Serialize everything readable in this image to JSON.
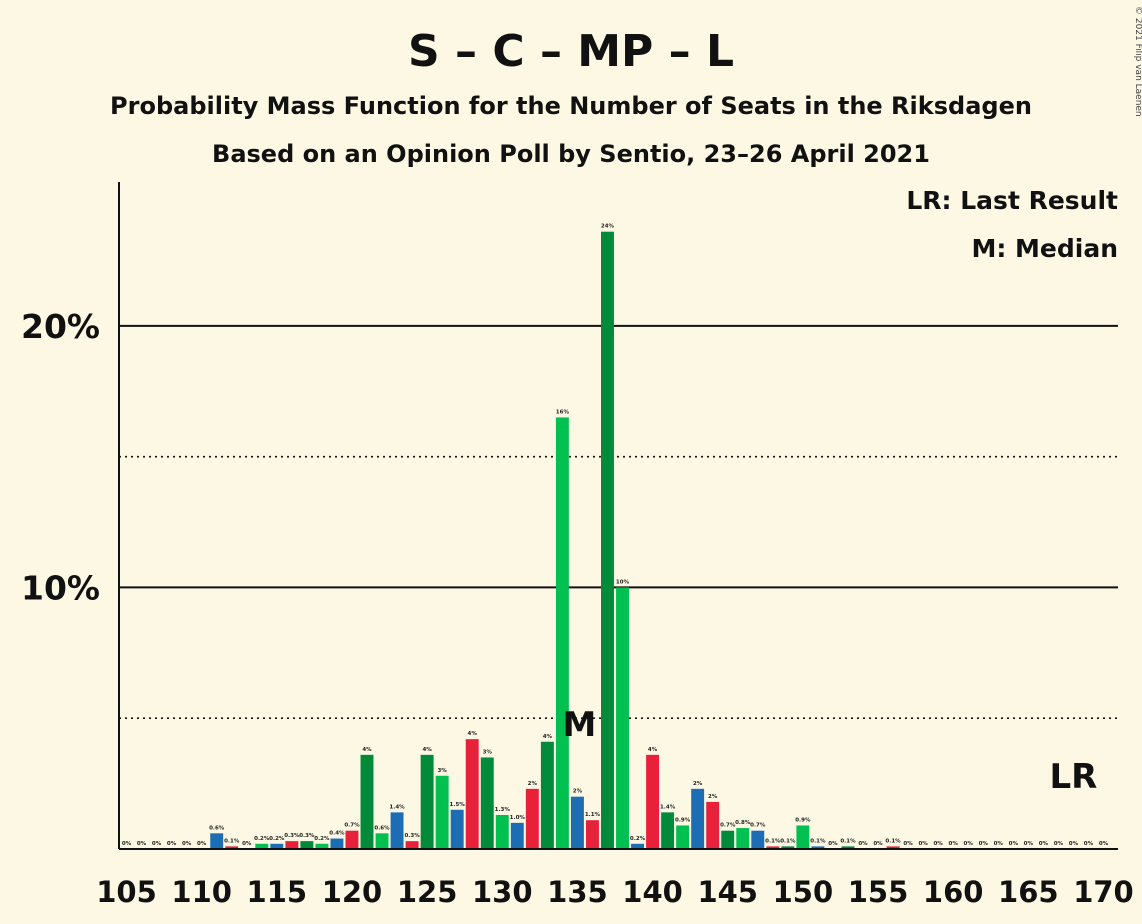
{
  "title": "S – C – MP – L",
  "subtitle1": "Probability Mass Function for the Number of Seats in the Riksdagen",
  "subtitle2": "Based on an Opinion Poll by Sentio, 23–26 April 2021",
  "copyright": "© 2021 Filip van Laenen",
  "legend": {
    "lr": "LR: Last Result",
    "m": "M: Median"
  },
  "markers": {
    "median_label": "M",
    "median_seat": 135,
    "lr_label": "LR",
    "lr_seat": 168
  },
  "colors": {
    "S": "#e8203a",
    "C": "#009e46",
    "MP": "#00c050",
    "L": "#1d6db5",
    "C_dark": "#008a3a"
  },
  "chart_data": {
    "type": "bar",
    "x_ticks": [
      "105",
      "110",
      "115",
      "120",
      "125",
      "130",
      "135",
      "140",
      "145",
      "150",
      "155",
      "160",
      "165",
      "170"
    ],
    "y_ticks": [
      "10%",
      "20%"
    ],
    "ylim": [
      0,
      25.5
    ],
    "xlim": [
      104.5,
      170.5
    ],
    "solid_gridlines": [
      10,
      20
    ],
    "dotted_gridlines": [
      5,
      15
    ],
    "bars": [
      {
        "seat": 105,
        "value": 0.0,
        "label": "0%",
        "color": "red"
      },
      {
        "seat": 106,
        "value": 0.0,
        "label": "0%",
        "color": "dkgreen"
      },
      {
        "seat": 107,
        "value": 0.0,
        "label": "0%",
        "color": "green"
      },
      {
        "seat": 108,
        "value": 0.0,
        "label": "0%",
        "color": "blue"
      },
      {
        "seat": 109,
        "value": 0.0,
        "label": "0%",
        "color": "red"
      },
      {
        "seat": 110,
        "value": 0.0,
        "label": "0%",
        "color": "dkgreen"
      },
      {
        "seat": 111,
        "value": 0.6,
        "label": "0.6%",
        "color": "blue"
      },
      {
        "seat": 112,
        "value": 0.1,
        "label": "0.1%",
        "color": "red"
      },
      {
        "seat": 113,
        "value": 0.0,
        "label": "0%",
        "color": "dkgreen"
      },
      {
        "seat": 114,
        "value": 0.2,
        "label": "0.2%",
        "color": "green"
      },
      {
        "seat": 115,
        "value": 0.2,
        "label": "0.2%",
        "color": "blue"
      },
      {
        "seat": 116,
        "value": 0.3,
        "label": "0.3%",
        "color": "red"
      },
      {
        "seat": 117,
        "value": 0.3,
        "label": "0.3%",
        "color": "dkgreen"
      },
      {
        "seat": 118,
        "value": 0.2,
        "label": "0.2%",
        "color": "green"
      },
      {
        "seat": 119,
        "value": 0.4,
        "label": "0.4%",
        "color": "blue"
      },
      {
        "seat": 120,
        "value": 0.7,
        "label": "0.7%",
        "color": "red"
      },
      {
        "seat": 121,
        "value": 3.6,
        "label": "4%",
        "color": "dkgreen"
      },
      {
        "seat": 122,
        "value": 0.6,
        "label": "0.6%",
        "color": "green"
      },
      {
        "seat": 123,
        "value": 1.4,
        "label": "1.4%",
        "color": "blue"
      },
      {
        "seat": 124,
        "value": 0.3,
        "label": "0.3%",
        "color": "red"
      },
      {
        "seat": 125,
        "value": 3.6,
        "label": "4%",
        "color": "dkgreen"
      },
      {
        "seat": 126,
        "value": 2.8,
        "label": "3%",
        "color": "green"
      },
      {
        "seat": 127,
        "value": 1.5,
        "label": "1.5%",
        "color": "blue"
      },
      {
        "seat": 128,
        "value": 4.2,
        "label": "4%",
        "color": "red"
      },
      {
        "seat": 129,
        "value": 3.5,
        "label": "3%",
        "color": "dkgreen"
      },
      {
        "seat": 130,
        "value": 1.3,
        "label": "1.3%",
        "color": "green"
      },
      {
        "seat": 131,
        "value": 1.0,
        "label": "1.0%",
        "color": "blue"
      },
      {
        "seat": 132,
        "value": 2.3,
        "label": "2%",
        "color": "red"
      },
      {
        "seat": 133,
        "value": 4.1,
        "label": "4%",
        "color": "dkgreen"
      },
      {
        "seat": 134,
        "value": 16.5,
        "label": "16%",
        "color": "green"
      },
      {
        "seat": 135,
        "value": 2.0,
        "label": "2%",
        "color": "blue"
      },
      {
        "seat": 136,
        "value": 1.1,
        "label": "1.1%",
        "color": "red"
      },
      {
        "seat": 137,
        "value": 23.6,
        "label": "24%",
        "color": "dkgreen"
      },
      {
        "seat": 138,
        "value": 10.0,
        "label": "10%",
        "color": "green"
      },
      {
        "seat": 139,
        "value": 0.2,
        "label": "0.2%",
        "color": "blue"
      },
      {
        "seat": 140,
        "value": 3.6,
        "label": "4%",
        "color": "red"
      },
      {
        "seat": 141,
        "value": 1.4,
        "label": "1.4%",
        "color": "dkgreen"
      },
      {
        "seat": 142,
        "value": 0.9,
        "label": "0.9%",
        "color": "green"
      },
      {
        "seat": 143,
        "value": 2.3,
        "label": "2%",
        "color": "blue"
      },
      {
        "seat": 144,
        "value": 1.8,
        "label": "2%",
        "color": "red"
      },
      {
        "seat": 145,
        "value": 0.7,
        "label": "0.7%",
        "color": "dkgreen"
      },
      {
        "seat": 146,
        "value": 0.8,
        "label": "0.8%",
        "color": "green"
      },
      {
        "seat": 147,
        "value": 0.7,
        "label": "0.7%",
        "color": "blue"
      },
      {
        "seat": 148,
        "value": 0.1,
        "label": "0.1%",
        "color": "red"
      },
      {
        "seat": 149,
        "value": 0.1,
        "label": "0.1%",
        "color": "dkgreen"
      },
      {
        "seat": 150,
        "value": 0.9,
        "label": "0.9%",
        "color": "green"
      },
      {
        "seat": 151,
        "value": 0.1,
        "label": "0.1%",
        "color": "blue"
      },
      {
        "seat": 152,
        "value": 0.0,
        "label": "0%",
        "color": "red"
      },
      {
        "seat": 153,
        "value": 0.1,
        "label": "0.1%",
        "color": "dkgreen"
      },
      {
        "seat": 154,
        "value": 0.0,
        "label": "0%",
        "color": "green"
      },
      {
        "seat": 155,
        "value": 0.0,
        "label": "0%",
        "color": "blue"
      },
      {
        "seat": 156,
        "value": 0.1,
        "label": "0.1%",
        "color": "red"
      },
      {
        "seat": 157,
        "value": 0.0,
        "label": "0%",
        "color": "dkgreen"
      },
      {
        "seat": 158,
        "value": 0.0,
        "label": "0%",
        "color": "green"
      },
      {
        "seat": 159,
        "value": 0.0,
        "label": "0%",
        "color": "blue"
      },
      {
        "seat": 160,
        "value": 0.0,
        "label": "0%",
        "color": "red"
      },
      {
        "seat": 161,
        "value": 0.0,
        "label": "0%",
        "color": "dkgreen"
      },
      {
        "seat": 162,
        "value": 0.0,
        "label": "0%",
        "color": "green"
      },
      {
        "seat": 163,
        "value": 0.0,
        "label": "0%",
        "color": "blue"
      },
      {
        "seat": 164,
        "value": 0.0,
        "label": "0%",
        "color": "red"
      },
      {
        "seat": 165,
        "value": 0.0,
        "label": "0%",
        "color": "dkgreen"
      },
      {
        "seat": 166,
        "value": 0.0,
        "label": "0%",
        "color": "green"
      },
      {
        "seat": 167,
        "value": 0.0,
        "label": "0%",
        "color": "blue"
      },
      {
        "seat": 168,
        "value": 0.0,
        "label": "0%",
        "color": "red"
      },
      {
        "seat": 169,
        "value": 0.0,
        "label": "0%",
        "color": "dkgreen"
      },
      {
        "seat": 170,
        "value": 0.0,
        "label": "0%",
        "color": "green"
      }
    ]
  }
}
